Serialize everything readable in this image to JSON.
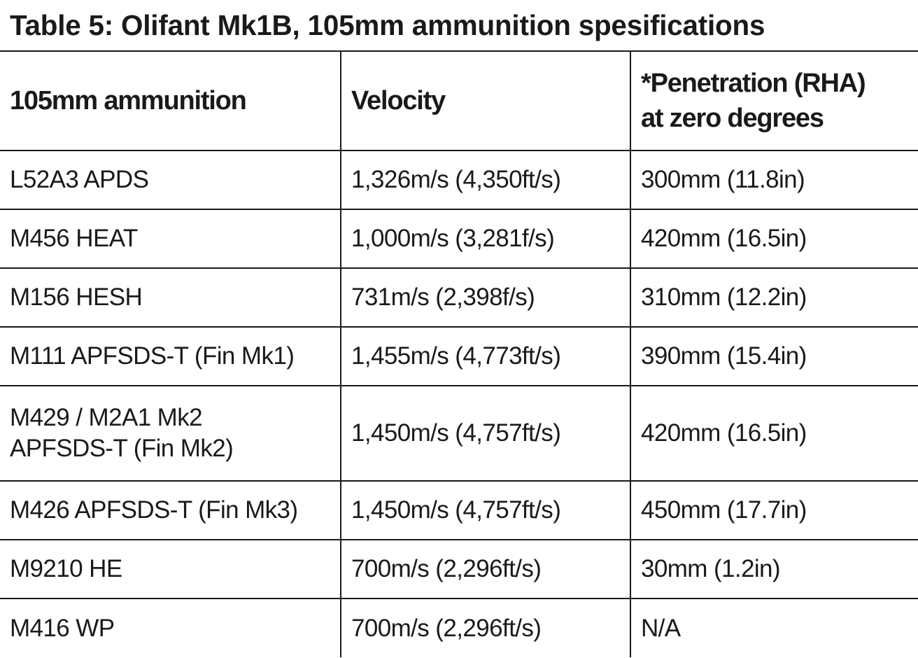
{
  "title": "Table 5: Olifant Mk1B, 105mm ammunition spesifications",
  "headers": [
    "105mm ammunition",
    "Velocity",
    "*Penetration (RHA) at zero degrees"
  ],
  "rows": [
    {
      "ammunition": "L52A3 APDS",
      "velocity": "1,326m/s (4,350ft/s)",
      "penetration": "300mm (11.8in)"
    },
    {
      "ammunition": "M456 HEAT",
      "velocity": "1,000m/s (3,281f/s)",
      "penetration": "420mm (16.5in)"
    },
    {
      "ammunition": "M156 HESH",
      "velocity": "731m/s (2,398f/s)",
      "penetration": "310mm (12.2in)"
    },
    {
      "ammunition": "M111 APFSDS-T (Fin Mk1)",
      "velocity": "1,455m/s (4,773ft/s)",
      "penetration": "390mm (15.4in)"
    },
    {
      "ammunition": "M429 / M2A1 Mk2 APFSDS-T (Fin Mk2)",
      "velocity": "1,450m/s (4,757ft/s)",
      "penetration": "420mm (16.5in)"
    },
    {
      "ammunition": "M426 APFSDS-T (Fin Mk3)",
      "velocity": "1,450m/s (4,757ft/s)",
      "penetration": "450mm (17.7in)"
    },
    {
      "ammunition": "M9210 HE",
      "velocity": "700m/s (2,296ft/s)",
      "penetration": "30mm (1.2in)"
    },
    {
      "ammunition": "M416 WP",
      "velocity": "700m/s (2,296ft/s)",
      "penetration": "N/A"
    }
  ]
}
